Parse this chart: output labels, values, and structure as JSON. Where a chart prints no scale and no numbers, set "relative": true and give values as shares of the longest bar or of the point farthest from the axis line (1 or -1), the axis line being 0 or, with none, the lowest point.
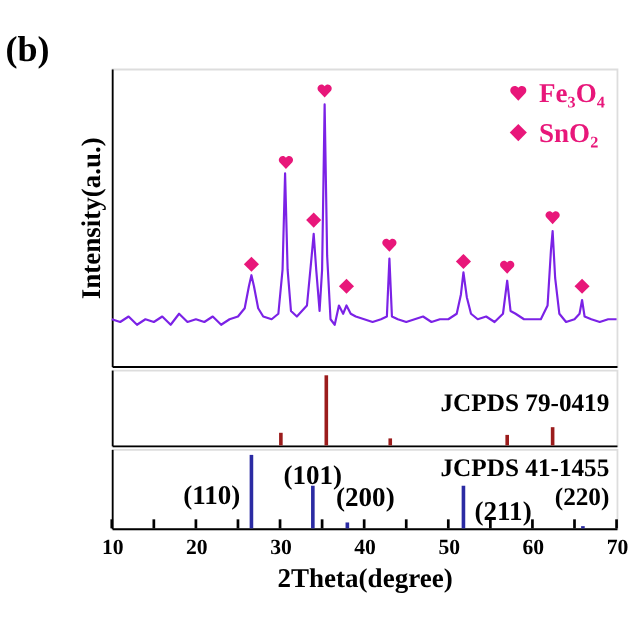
{
  "chart_data": [
    {
      "type": "line",
      "title": "(b)",
      "ylabel": "Intensity(a.u.)",
      "relative": true,
      "xlim": [
        10,
        70
      ],
      "tick_labels": false,
      "legend": "top right",
      "series": [
        {
          "color": "#7b22e6",
          "x": [
            10,
            11,
            12,
            13,
            14,
            15,
            16,
            17,
            18,
            19,
            20,
            21,
            22,
            23,
            24,
            25,
            25.8,
            26.3,
            26.6,
            26.9,
            27.4,
            28,
            29,
            29.8,
            30.3,
            30.6,
            30.9,
            31.3,
            32,
            33.2,
            33.7,
            34.0,
            34.3,
            34.7,
            35.0,
            35.3,
            35.6,
            36.0,
            36.5,
            37.0,
            37.5,
            37.9,
            38.4,
            39,
            40,
            41,
            42,
            42.7,
            43.0,
            43.3,
            44,
            45,
            46,
            47,
            48,
            49,
            50,
            51,
            51.5,
            51.8,
            52.2,
            52.7,
            53.5,
            54.5,
            55.5,
            56.5,
            57.0,
            57.4,
            58,
            59,
            60,
            61,
            61.8,
            62.2,
            62.4,
            62.7,
            63.2,
            64,
            65,
            65.6,
            65.9,
            66.2,
            67,
            68,
            69,
            70
          ],
          "values": [
            0.17,
            0.16,
            0.18,
            0.15,
            0.17,
            0.16,
            0.18,
            0.15,
            0.19,
            0.16,
            0.17,
            0.16,
            0.18,
            0.15,
            0.17,
            0.18,
            0.21,
            0.29,
            0.33,
            0.29,
            0.21,
            0.18,
            0.17,
            0.19,
            0.35,
            0.7,
            0.35,
            0.2,
            0.18,
            0.22,
            0.38,
            0.48,
            0.35,
            0.2,
            0.35,
            0.95,
            0.4,
            0.17,
            0.15,
            0.22,
            0.19,
            0.22,
            0.19,
            0.18,
            0.17,
            0.16,
            0.17,
            0.18,
            0.39,
            0.18,
            0.17,
            0.16,
            0.17,
            0.18,
            0.16,
            0.17,
            0.17,
            0.19,
            0.26,
            0.34,
            0.25,
            0.19,
            0.17,
            0.18,
            0.16,
            0.19,
            0.31,
            0.2,
            0.19,
            0.17,
            0.17,
            0.17,
            0.22,
            0.42,
            0.49,
            0.32,
            0.19,
            0.16,
            0.17,
            0.19,
            0.24,
            0.18,
            0.17,
            0.16,
            0.17,
            0.17
          ]
        },
        {
          "type": "scatter",
          "name": "Fe₃O₄",
          "color": "#e8177a",
          "x": [
            30.7,
            35.3,
            43.0,
            57.0,
            62.4
          ],
          "values": [
            0.74,
            1.0,
            0.44,
            0.36,
            0.54
          ]
        },
        {
          "type": "scatter",
          "name": "SnO₂",
          "marker": "diamond",
          "color": "#e8177a",
          "x": [
            26.6,
            34.0,
            37.9,
            51.8,
            65.9
          ],
          "values": [
            0.37,
            0.53,
            0.29,
            0.38,
            0.29
          ]
        }
      ]
    },
    {
      "type": "bar",
      "relative": true,
      "xlim": [
        10,
        70
      ],
      "tick_labels": false,
      "series": [
        {
          "color": "#9b1c1c",
          "x": [
            30.1,
            35.5,
            43.1,
            57.0,
            62.4
          ],
          "values": [
            0.18,
            1,
            0.1,
            0.15,
            0.26
          ]
        }
      ],
      "annotations": [
        "JCPDS 79-0419"
      ]
    },
    {
      "type": "bar",
      "relative": true,
      "xlim": [
        10,
        70
      ],
      "tick_labels": "x",
      "xlabel": "2Theta(degree)",
      "xticks": [
        10,
        {
          "value": 15,
          "label": null
        },
        20,
        {
          "value": 25,
          "label": null
        },
        30,
        {
          "value": 35,
          "label": null
        },
        40,
        {
          "value": 45,
          "label": null
        },
        50,
        {
          "value": 55,
          "label": null
        },
        60,
        {
          "value": 65,
          "label": null
        },
        70
      ],
      "series": [
        {
          "color": "#2b2ba3",
          "x": [
            26.6,
            33.9,
            38.0,
            51.8,
            66.0
          ],
          "values": [
            1,
            0.58,
            0.08,
            0.58,
            0.03
          ]
        }
      ],
      "annotations": [
        "JCPDS 41-1455",
        {
          "text": "(110)",
          "x": 26.6,
          "y": 1
        },
        {
          "text": "(101)",
          "x": 33.9,
          "y": 0.58
        },
        {
          "text": "(200)",
          "x": 38.0,
          "y": 0.08
        },
        {
          "text": "(211)",
          "x": 51.8,
          "y": 0.58
        },
        "(220)"
      ]
    }
  ]
}
